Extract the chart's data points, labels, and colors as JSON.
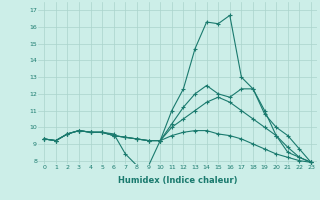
{
  "xlabel": "Humidex (Indice chaleur)",
  "background_color": "#cceee8",
  "grid_color": "#aad4cc",
  "line_color": "#1a7a6e",
  "xlim": [
    -0.5,
    23.5
  ],
  "ylim": [
    7.8,
    17.5
  ],
  "xticks": [
    0,
    1,
    2,
    3,
    4,
    5,
    6,
    7,
    8,
    9,
    10,
    11,
    12,
    13,
    14,
    15,
    16,
    17,
    18,
    19,
    20,
    21,
    22,
    23
  ],
  "yticks": [
    8,
    9,
    10,
    11,
    12,
    13,
    14,
    15,
    16,
    17
  ],
  "series": [
    [
      9.3,
      9.2,
      9.6,
      9.8,
      9.7,
      9.7,
      9.6,
      8.4,
      7.7,
      7.7,
      9.2,
      11.0,
      12.3,
      14.7,
      16.3,
      16.2,
      16.7,
      13.0,
      12.3,
      11.0,
      9.5,
      8.5,
      8.2,
      7.9
    ],
    [
      9.3,
      9.2,
      9.6,
      9.8,
      9.7,
      9.7,
      9.5,
      9.4,
      9.3,
      9.2,
      9.2,
      10.2,
      11.2,
      12.0,
      12.5,
      12.0,
      11.8,
      12.3,
      12.3,
      10.8,
      10.0,
      9.5,
      8.7,
      7.9
    ],
    [
      9.3,
      9.2,
      9.6,
      9.8,
      9.7,
      9.7,
      9.5,
      9.4,
      9.3,
      9.2,
      9.2,
      10.0,
      10.5,
      11.0,
      11.5,
      11.8,
      11.5,
      11.0,
      10.5,
      10.0,
      9.5,
      8.8,
      8.2,
      7.9
    ],
    [
      9.3,
      9.2,
      9.6,
      9.8,
      9.7,
      9.7,
      9.5,
      9.4,
      9.3,
      9.2,
      9.2,
      9.5,
      9.7,
      9.8,
      9.8,
      9.6,
      9.5,
      9.3,
      9.0,
      8.7,
      8.4,
      8.2,
      8.0,
      7.9
    ]
  ],
  "figsize": [
    3.2,
    2.0
  ],
  "dpi": 100
}
